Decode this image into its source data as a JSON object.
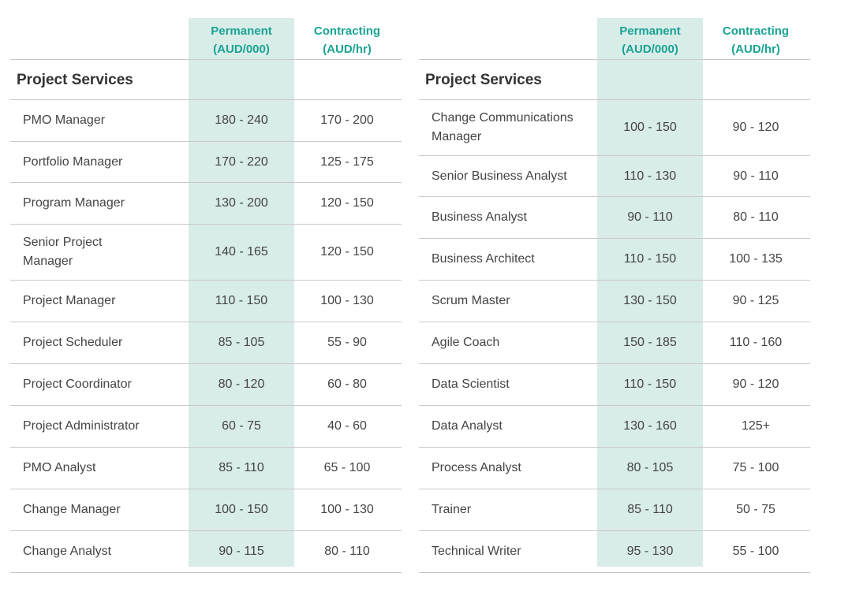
{
  "left": {
    "header": {
      "permanent": [
        "Permanent",
        "(AUD/000)"
      ],
      "contracting": [
        "Contracting",
        "(AUD/hr)"
      ]
    },
    "section_title": "Project Services",
    "rows": [
      {
        "role": "PMO Manager",
        "permanent": "180 - 240",
        "contracting": "170 - 200"
      },
      {
        "role": "Portfolio Manager",
        "permanent": "170 - 220",
        "contracting": "125 - 175"
      },
      {
        "role": "Program Manager",
        "permanent": "130 - 200",
        "contracting": "120 - 150"
      },
      {
        "role": "Senior Project\n Manager",
        "permanent": "140 - 165",
        "contracting": "120 - 150"
      },
      {
        "role": "Project Manager",
        "permanent": "110 - 150",
        "contracting": "100 - 130"
      },
      {
        "role": "Project Scheduler",
        "permanent": "85 - 105",
        "contracting": "55 - 90"
      },
      {
        "role": "Project Coordinator",
        "permanent": "80 - 120",
        "contracting": "60 - 80"
      },
      {
        "role": "Project Administrator",
        "permanent": "60 - 75",
        "contracting": "40 - 60"
      },
      {
        "role": "PMO Analyst",
        "permanent": "85 - 110",
        "contracting": "65 - 100"
      },
      {
        "role": "Change Manager",
        "permanent": "100 - 150",
        "contracting": "100 - 130"
      },
      {
        "role": "Change Analyst",
        "permanent": "90 - 115",
        "contracting": "80 - 110"
      }
    ]
  },
  "right": {
    "header": {
      "permanent": [
        "Permanent",
        "(AUD/000)"
      ],
      "contracting": [
        "Contracting",
        "(AUD/hr)"
      ]
    },
    "section_title": "Project Services",
    "rows": [
      {
        "role": "Change Communications\nManager",
        "permanent": "100 - 150",
        "contracting": "90 - 120"
      },
      {
        "role": "Senior Business Analyst",
        "permanent": "110 - 130",
        "contracting": "90 - 110"
      },
      {
        "role": "Business Analyst",
        "permanent": "90 - 110",
        "contracting": "80 - 110"
      },
      {
        "role": "Business Architect",
        "permanent": "110 - 150",
        "contracting": "100 - 135"
      },
      {
        "role": "Scrum Master",
        "permanent": "130 - 150",
        "contracting": "90 - 125"
      },
      {
        "role": "Agile Coach",
        "permanent": "150 - 185",
        "contracting": "110 - 160"
      },
      {
        "role": "Data Scientist",
        "permanent": "110 - 150",
        "contracting": "90 - 120"
      },
      {
        "role": "Data Analyst",
        "permanent": "130 - 160",
        "contracting": "125+"
      },
      {
        "role": "Process Analyst",
        "permanent": "80 - 105",
        "contracting": "75 - 100"
      },
      {
        "role": "Trainer",
        "permanent": "85 - 110",
        "contracting": "50 - 75"
      },
      {
        "role": "Technical Writer",
        "permanent": "95 - 130",
        "contracting": "55 - 100"
      }
    ]
  }
}
